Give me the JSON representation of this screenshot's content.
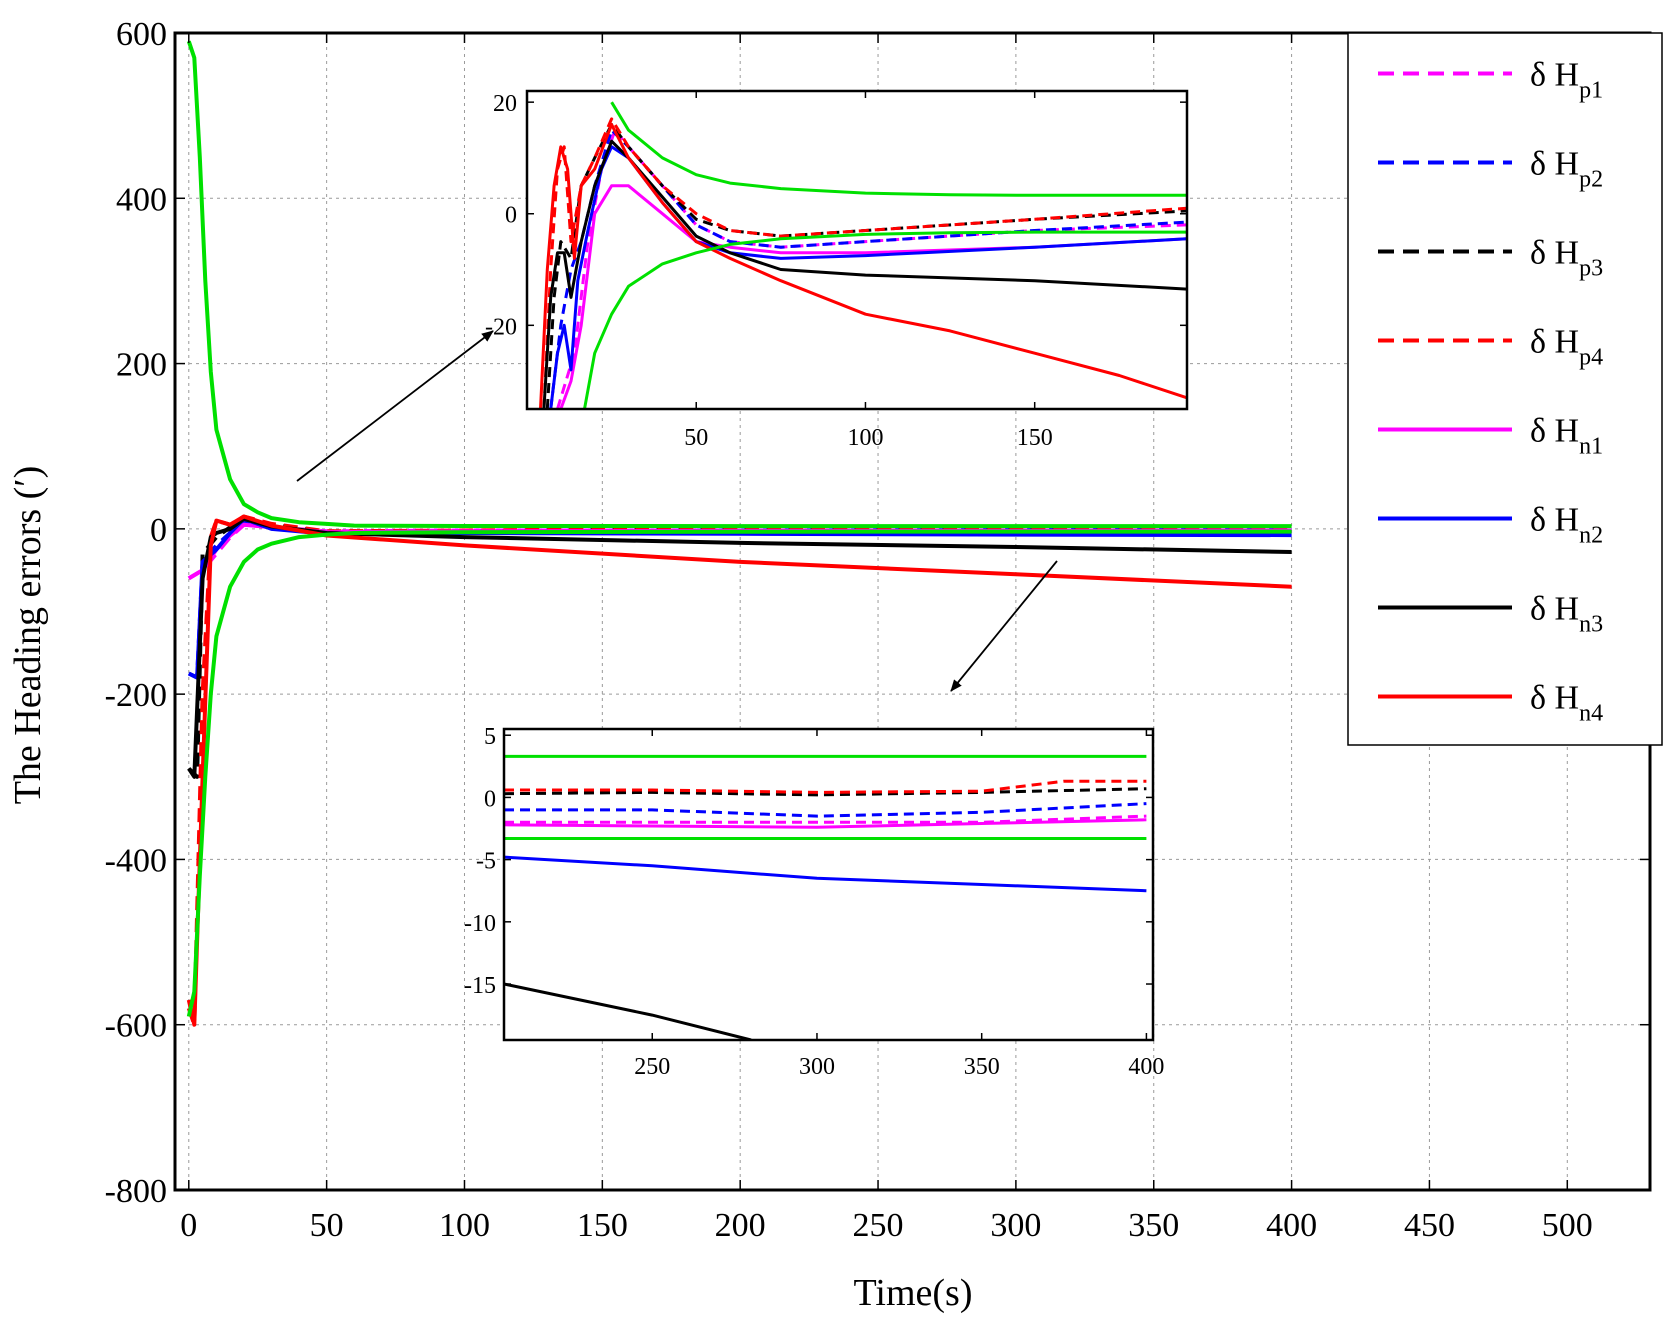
{
  "chart_data": [
    {
      "id": "main",
      "type": "line",
      "title": "",
      "xlabel": "Time(s)",
      "ylabel": "The Heading errors (′)",
      "xlim": [
        -5,
        530
      ],
      "ylim": [
        -800,
        600
      ],
      "xticks": [
        0,
        50,
        100,
        150,
        200,
        250,
        300,
        350,
        400,
        450,
        500
      ],
      "yticks": [
        600,
        400,
        200,
        0,
        -200,
        -400,
        -600,
        -800
      ],
      "grid": true,
      "series": [
        {
          "name": "Hp1",
          "color": "#ff00ff",
          "dash": true,
          "x": [
            0,
            5,
            10,
            15,
            20,
            30,
            50,
            100,
            200,
            300,
            400
          ],
          "y": [
            -60,
            -50,
            -30,
            -10,
            5,
            2,
            -3,
            -2,
            -2,
            -2,
            -2
          ]
        },
        {
          "name": "Hp2",
          "color": "#0000ff",
          "dash": true,
          "x": [
            0,
            3,
            5,
            10,
            15,
            20,
            30,
            50,
            100,
            200,
            300,
            400
          ],
          "y": [
            -175,
            -180,
            -40,
            -20,
            -5,
            10,
            2,
            -5,
            -4,
            -2,
            -1.5,
            -1
          ]
        },
        {
          "name": "Hp3",
          "color": "#000000",
          "dash": true,
          "x": [
            0,
            3,
            5,
            10,
            15,
            20,
            30,
            50,
            100,
            200,
            300,
            400
          ],
          "y": [
            -290,
            -300,
            -30,
            -10,
            2,
            13,
            5,
            -4,
            -3,
            0.5,
            0.5,
            0.5
          ]
        },
        {
          "name": "Hp4",
          "color": "#ff0000",
          "dash": true,
          "x": [
            0,
            2,
            5,
            8,
            10,
            15,
            20,
            30,
            50,
            100,
            200,
            300,
            400
          ],
          "y": [
            -580,
            -600,
            -200,
            -10,
            10,
            5,
            15,
            6,
            -3,
            -2,
            0.5,
            0.5,
            1
          ]
        },
        {
          "name": "Hn1",
          "color": "#ff00ff",
          "dash": false,
          "x": [
            0,
            5,
            10,
            15,
            20,
            30,
            50,
            100,
            200,
            300,
            400
          ],
          "y": [
            -60,
            -50,
            -25,
            -8,
            5,
            2,
            -4,
            -3,
            -2.5,
            -2.5,
            -2
          ]
        },
        {
          "name": "Hn2",
          "color": "#0000ff",
          "dash": false,
          "x": [
            0,
            3,
            5,
            10,
            15,
            20,
            30,
            50,
            100,
            200,
            300,
            400
          ],
          "y": [
            -175,
            -180,
            -40,
            -25,
            -5,
            12,
            0,
            -6,
            -5,
            -6,
            -7,
            -7.5
          ]
        },
        {
          "name": "Hn3",
          "color": "#000000",
          "dash": false,
          "x": [
            0,
            2,
            5,
            8,
            10,
            15,
            20,
            30,
            50,
            100,
            200,
            300,
            400
          ],
          "y": [
            -290,
            -300,
            -60,
            -10,
            -5,
            0,
            12,
            3,
            -5,
            -10,
            -17,
            -22,
            -28
          ]
        },
        {
          "name": "Hn4",
          "color": "#ff0000",
          "dash": false,
          "x": [
            0,
            2,
            5,
            8,
            10,
            15,
            20,
            30,
            50,
            100,
            200,
            300,
            400
          ],
          "y": [
            -570,
            -600,
            -300,
            -20,
            10,
            5,
            15,
            4,
            -8,
            -20,
            -40,
            -55,
            -70
          ]
        },
        {
          "name": "Upper envelope",
          "color": "#00e000",
          "dash": false,
          "x": [
            0,
            2,
            4,
            6,
            8,
            10,
            15,
            20,
            25,
            30,
            40,
            50,
            60,
            100,
            200,
            300,
            400
          ],
          "y": [
            590,
            570,
            450,
            300,
            190,
            120,
            60,
            30,
            20,
            13,
            8,
            6,
            4,
            3.5,
            3.3,
            3.3,
            3.3
          ]
        },
        {
          "name": "Lower envelope",
          "color": "#00e000",
          "dash": false,
          "x": [
            0,
            2,
            4,
            6,
            8,
            10,
            15,
            20,
            25,
            30,
            40,
            50,
            60,
            100,
            200,
            300,
            400
          ],
          "y": [
            -590,
            -560,
            -420,
            -300,
            -200,
            -130,
            -70,
            -40,
            -25,
            -18,
            -10,
            -7,
            -5,
            -4,
            -3.5,
            -3.3,
            -3.3
          ]
        }
      ]
    },
    {
      "id": "inset_top",
      "type": "line",
      "xlim": [
        0,
        195
      ],
      "ylim": [
        -35,
        22
      ],
      "xticks": [
        50,
        100,
        150
      ],
      "xtick_labels": [
        "50",
        "100",
        "150"
      ],
      "yticks": [
        20,
        0,
        -20
      ],
      "ytick_labels": [
        "20",
        "0",
        "-20"
      ],
      "series": [
        {
          "name": "Hp1",
          "color": "#ff00ff",
          "dash": true,
          "x": [
            9,
            14,
            18,
            22,
            26,
            30,
            40,
            50,
            60,
            75,
            100,
            150,
            195
          ],
          "y": [
            -35,
            -25,
            -5,
            8,
            15,
            12,
            5,
            -2,
            -5,
            -6,
            -5,
            -3,
            -2
          ]
        },
        {
          "name": "Hp2",
          "color": "#0000ff",
          "dash": true,
          "x": [
            7,
            10,
            13,
            16,
            20,
            25,
            30,
            40,
            50,
            60,
            75,
            100,
            150,
            195
          ],
          "y": [
            -35,
            -20,
            -10,
            -5,
            5,
            15,
            12,
            5,
            -2,
            -5,
            -6,
            -5,
            -3,
            -1.5
          ]
        },
        {
          "name": "Hp3",
          "color": "#000000",
          "dash": true,
          "x": [
            6,
            8,
            10,
            13,
            16,
            20,
            25,
            30,
            40,
            50,
            60,
            75,
            100,
            150,
            195
          ],
          "y": [
            -35,
            -15,
            -5,
            -8,
            5,
            10,
            16,
            12,
            5,
            -1,
            -3,
            -4,
            -3,
            -1,
            0.5
          ]
        },
        {
          "name": "Hp4",
          "color": "#ff0000",
          "dash": true,
          "x": [
            5,
            7,
            9,
            11,
            13,
            16,
            20,
            25,
            30,
            40,
            50,
            60,
            75,
            100,
            150,
            195
          ],
          "y": [
            -35,
            -10,
            8,
            12,
            -5,
            5,
            10,
            17,
            12,
            5,
            0,
            -3,
            -4,
            -3,
            -1,
            1
          ]
        },
        {
          "name": "Hn1",
          "color": "#ff00ff",
          "dash": false,
          "x": [
            10,
            13,
            16,
            20,
            25,
            30,
            40,
            50,
            60,
            75,
            100,
            150,
            195
          ],
          "y": [
            -35,
            -30,
            -20,
            0,
            5,
            5,
            0,
            -5,
            -6,
            -7,
            -7,
            -6,
            -4.5
          ]
        },
        {
          "name": "Hn2",
          "color": "#0000ff",
          "dash": false,
          "x": [
            7,
            9,
            11,
            13,
            15,
            18,
            22,
            25,
            30,
            40,
            50,
            60,
            75,
            100,
            150,
            195
          ],
          "y": [
            -35,
            -25,
            -20,
            -28,
            -12,
            -3,
            8,
            12,
            10,
            2,
            -5,
            -7,
            -8,
            -7.5,
            -6,
            -4.5
          ]
        },
        {
          "name": "Hn3",
          "color": "#000000",
          "dash": false,
          "x": [
            5,
            7,
            9,
            11,
            13,
            16,
            20,
            25,
            30,
            40,
            50,
            60,
            75,
            100,
            150,
            195
          ],
          "y": [
            -35,
            -15,
            -7,
            -7,
            -15,
            -5,
            5,
            13,
            10,
            3,
            -4,
            -7,
            -10,
            -11,
            -12,
            -13.5
          ]
        },
        {
          "name": "Hn4",
          "color": "#ff0000",
          "dash": false,
          "x": [
            4,
            6,
            8,
            10,
            12,
            14,
            16,
            20,
            25,
            30,
            40,
            50,
            60,
            75,
            100,
            125,
            150,
            175,
            195
          ],
          "y": [
            -35,
            -10,
            5,
            12,
            8,
            -8,
            5,
            8,
            16,
            10,
            2,
            -5,
            -8,
            -12,
            -18,
            -21,
            -25,
            -29,
            -33
          ]
        },
        {
          "name": "Upper envelope",
          "color": "#00e000",
          "dash": false,
          "x": [
            25,
            30,
            40,
            50,
            60,
            75,
            100,
            125,
            150,
            175,
            195
          ],
          "y": [
            20,
            15,
            10,
            7,
            5.5,
            4.5,
            3.7,
            3.4,
            3.3,
            3.3,
            3.3
          ]
        },
        {
          "name": "Lower envelope",
          "color": "#00e000",
          "dash": false,
          "x": [
            17,
            20,
            25,
            30,
            40,
            50,
            60,
            75,
            100,
            125,
            150,
            175,
            195
          ],
          "y": [
            -35,
            -25,
            -18,
            -13,
            -9,
            -7,
            -5.5,
            -4.5,
            -3.7,
            -3.4,
            -3.3,
            -3.3,
            -3.3
          ]
        }
      ]
    },
    {
      "id": "inset_bottom",
      "type": "line",
      "xlim": [
        205,
        402
      ],
      "ylim": [
        -19.5,
        5.5
      ],
      "xticks": [
        250,
        300,
        350,
        400
      ],
      "xtick_labels": [
        "250",
        "300",
        "350",
        "400"
      ],
      "yticks": [
        5,
        0,
        -5,
        -10,
        -15
      ],
      "ytick_labels": [
        "5",
        "0",
        "-5",
        "-10",
        "-15"
      ],
      "series": [
        {
          "name": "Hp1",
          "color": "#ff00ff",
          "dash": true,
          "x": [
            205,
            250,
            300,
            350,
            400
          ],
          "y": [
            -2,
            -2,
            -2,
            -2,
            -1.5
          ]
        },
        {
          "name": "Hp2",
          "color": "#0000ff",
          "dash": true,
          "x": [
            205,
            250,
            300,
            350,
            400
          ],
          "y": [
            -1,
            -1,
            -1.5,
            -1.2,
            -0.5
          ]
        },
        {
          "name": "Hp3",
          "color": "#000000",
          "dash": true,
          "x": [
            205,
            250,
            300,
            350,
            400
          ],
          "y": [
            0.3,
            0.4,
            0.2,
            0.4,
            0.7
          ]
        },
        {
          "name": "Hp4",
          "color": "#ff0000",
          "dash": true,
          "x": [
            205,
            250,
            300,
            350,
            375,
            400
          ],
          "y": [
            0.6,
            0.6,
            0.4,
            0.5,
            1.3,
            1.3
          ]
        },
        {
          "name": "Hn1",
          "color": "#ff00ff",
          "dash": false,
          "x": [
            205,
            250,
            300,
            350,
            400
          ],
          "y": [
            -2.2,
            -2.3,
            -2.4,
            -2.1,
            -1.8
          ]
        },
        {
          "name": "Hn2",
          "color": "#0000ff",
          "dash": false,
          "x": [
            205,
            250,
            300,
            350,
            400
          ],
          "y": [
            -4.8,
            -5.5,
            -6.5,
            -7,
            -7.5
          ]
        },
        {
          "name": "Hn3",
          "color": "#000000",
          "dash": false,
          "x": [
            205,
            250,
            280
          ],
          "y": [
            -15,
            -17.5,
            -19.5
          ]
        },
        {
          "name": "Upper envelope",
          "color": "#00e000",
          "dash": false,
          "x": [
            205,
            400
          ],
          "y": [
            3.3,
            3.3
          ]
        },
        {
          "name": "Lower envelope",
          "color": "#00e000",
          "dash": false,
          "x": [
            205,
            400
          ],
          "y": [
            -3.3,
            -3.3
          ]
        }
      ]
    }
  ],
  "legend": {
    "position": "top-right",
    "entries": [
      {
        "prefix": "δ H",
        "sub": "p1",
        "color": "#ff00ff",
        "dash": true
      },
      {
        "prefix": "δ H",
        "sub": "p2",
        "color": "#0000ff",
        "dash": true
      },
      {
        "prefix": "δ H",
        "sub": "p3",
        "color": "#000000",
        "dash": true
      },
      {
        "prefix": "δ H",
        "sub": "p4",
        "color": "#ff0000",
        "dash": true
      },
      {
        "prefix": "δ H",
        "sub": "n1",
        "color": "#ff00ff",
        "dash": false
      },
      {
        "prefix": "δ H",
        "sub": "n2",
        "color": "#0000ff",
        "dash": false
      },
      {
        "prefix": "δ H",
        "sub": "n3",
        "color": "#000000",
        "dash": false
      },
      {
        "prefix": "δ H",
        "sub": "n4",
        "color": "#ff0000",
        "dash": false
      }
    ]
  }
}
